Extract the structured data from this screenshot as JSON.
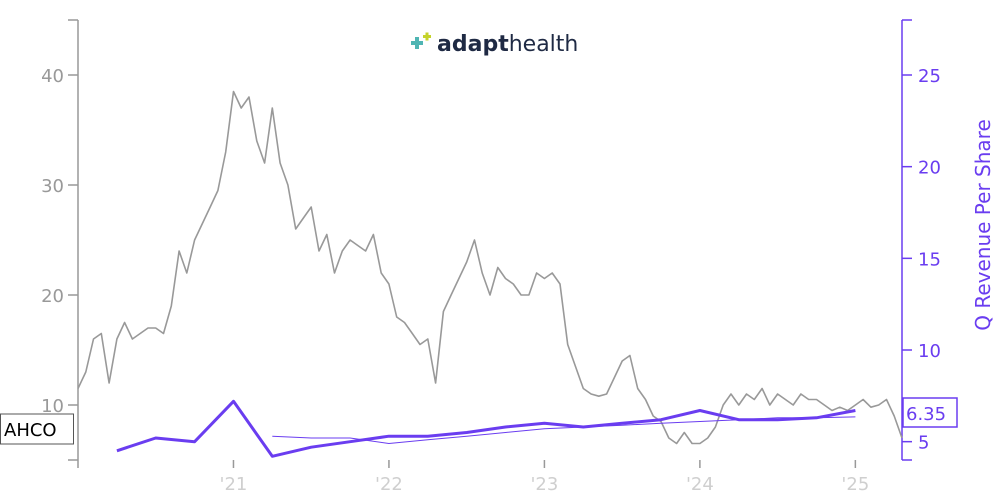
{
  "logo": {
    "part1": "adapt",
    "part2": "health"
  },
  "ticker": "AHCO",
  "current_value_label": "6.35",
  "colors": {
    "price": "#999999",
    "revenue": "#6a3df0",
    "axis_left": "#999999",
    "axis_right": "#6a3df0",
    "x_ticks": "#cfcfcf"
  },
  "chart_data": {
    "type": "line",
    "title": "",
    "xlabel": "",
    "x_range": [
      2020.0,
      2025.3
    ],
    "x_ticks": [
      {
        "x": 2021.0,
        "label": "'21"
      },
      {
        "x": 2022.0,
        "label": "'22"
      },
      {
        "x": 2023.0,
        "label": "'23"
      },
      {
        "x": 2024.0,
        "label": "'24"
      },
      {
        "x": 2025.0,
        "label": "'25"
      }
    ],
    "y_left": {
      "label": "",
      "range": [
        5,
        45
      ],
      "ticks": [
        10,
        20,
        30,
        40
      ]
    },
    "y_right": {
      "label": "Q Revenue Per Share",
      "range": [
        4,
        28
      ],
      "ticks": [
        5,
        10,
        15,
        20,
        25
      ]
    },
    "series": [
      {
        "name": "AHCO",
        "axis": "left",
        "x": [
          2020.0,
          2020.05,
          2020.1,
          2020.15,
          2020.2,
          2020.25,
          2020.3,
          2020.35,
          2020.4,
          2020.45,
          2020.5,
          2020.55,
          2020.6,
          2020.65,
          2020.7,
          2020.75,
          2020.8,
          2020.85,
          2020.9,
          2020.95,
          2021.0,
          2021.05,
          2021.1,
          2021.15,
          2021.2,
          2021.25,
          2021.3,
          2021.35,
          2021.4,
          2021.45,
          2021.5,
          2021.55,
          2021.6,
          2021.65,
          2021.7,
          2021.75,
          2021.8,
          2021.85,
          2021.9,
          2021.95,
          2022.0,
          2022.05,
          2022.1,
          2022.15,
          2022.2,
          2022.25,
          2022.3,
          2022.35,
          2022.4,
          2022.45,
          2022.5,
          2022.55,
          2022.6,
          2022.65,
          2022.7,
          2022.75,
          2022.8,
          2022.85,
          2022.9,
          2022.95,
          2023.0,
          2023.05,
          2023.1,
          2023.15,
          2023.2,
          2023.25,
          2023.3,
          2023.35,
          2023.4,
          2023.45,
          2023.5,
          2023.55,
          2023.6,
          2023.65,
          2023.7,
          2023.75,
          2023.8,
          2023.85,
          2023.9,
          2023.95,
          2024.0,
          2024.05,
          2024.1,
          2024.15,
          2024.2,
          2024.25,
          2024.3,
          2024.35,
          2024.4,
          2024.45,
          2024.5,
          2024.55,
          2024.6,
          2024.65,
          2024.7,
          2024.75,
          2024.8,
          2024.85,
          2024.9,
          2024.95,
          2025.0,
          2025.05,
          2025.1,
          2025.15,
          2025.2,
          2025.25,
          2025.3
        ],
        "values": [
          11.5,
          13.0,
          16.0,
          16.5,
          12.0,
          16.0,
          17.5,
          16.0,
          16.5,
          17.0,
          17.0,
          16.5,
          19.0,
          24.0,
          22.0,
          25.0,
          26.5,
          28.0,
          29.5,
          33.0,
          38.5,
          37.0,
          38.0,
          34.0,
          32.0,
          37.0,
          32.0,
          30.0,
          26.0,
          27.0,
          28.0,
          24.0,
          25.5,
          22.0,
          24.0,
          25.0,
          24.5,
          24.0,
          25.5,
          22.0,
          21.0,
          18.0,
          17.5,
          16.5,
          15.5,
          16.0,
          12.0,
          18.5,
          20.0,
          21.5,
          23.0,
          25.0,
          22.0,
          20.0,
          22.5,
          21.5,
          21.0,
          20.0,
          20.0,
          22.0,
          21.5,
          22.0,
          21.0,
          15.5,
          13.5,
          11.5,
          11.0,
          10.8,
          11.0,
          12.5,
          14.0,
          14.5,
          11.5,
          10.5,
          9.0,
          8.5,
          7.0,
          6.5,
          7.5,
          6.5,
          6.5,
          7.0,
          8.0,
          10.0,
          11.0,
          10.0,
          11.0,
          10.5,
          11.5,
          10.0,
          11.0,
          10.5,
          10.0,
          11.0,
          10.5,
          10.5,
          10.0,
          9.5,
          9.8,
          9.5,
          10.0,
          10.5,
          9.8,
          10.0,
          10.5,
          9.0,
          7.0
        ]
      },
      {
        "name": "Q Revenue Per Share",
        "axis": "right",
        "x": [
          2020.25,
          2020.5,
          2020.75,
          2021.0,
          2021.25,
          2021.5,
          2021.75,
          2022.0,
          2022.25,
          2022.5,
          2022.75,
          2023.0,
          2023.25,
          2023.5,
          2023.75,
          2024.0,
          2024.25,
          2024.5,
          2024.75,
          2025.0
        ],
        "values": [
          4.5,
          5.2,
          5.0,
          7.2,
          4.2,
          4.7,
          5.0,
          5.3,
          5.3,
          5.5,
          5.8,
          6.0,
          5.8,
          6.0,
          6.2,
          6.7,
          6.2,
          6.2,
          6.3,
          6.7
        ]
      },
      {
        "name": "",
        "axis": "right",
        "x": [
          2021.25,
          2021.5,
          2021.75,
          2022.0,
          2022.25,
          2022.5,
          2022.75,
          2023.0,
          2023.25,
          2023.5,
          2023.75,
          2024.0,
          2024.25,
          2024.5,
          2024.75,
          2025.0
        ],
        "values": [
          5.3,
          5.2,
          5.2,
          4.9,
          5.1,
          5.3,
          5.5,
          5.7,
          5.8,
          5.9,
          6.0,
          6.1,
          6.2,
          6.3,
          6.3,
          6.35
        ]
      }
    ]
  }
}
